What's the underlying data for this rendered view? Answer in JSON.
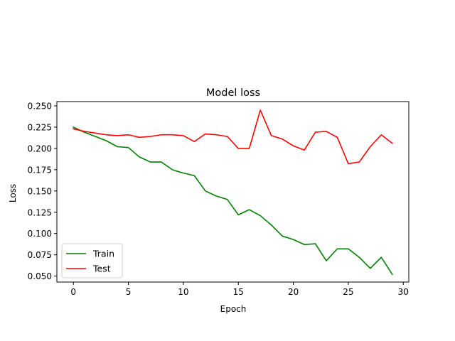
{
  "chart_data": {
    "type": "line",
    "title": "Model loss",
    "xlabel": "Epoch",
    "ylabel": "Loss",
    "xlim": [
      -1.5,
      30.5
    ],
    "ylim": [
      0.043,
      0.255
    ],
    "xticks": [
      0,
      5,
      10,
      15,
      20,
      25,
      30
    ],
    "yticks": [
      0.05,
      0.075,
      0.1,
      0.125,
      0.15,
      0.175,
      0.2,
      0.225,
      0.25
    ],
    "xtick_labels": [
      "0",
      "5",
      "10",
      "15",
      "20",
      "25",
      "30"
    ],
    "ytick_labels": [
      "0.050",
      "0.075",
      "0.100",
      "0.125",
      "0.150",
      "0.175",
      "0.200",
      "0.225",
      "0.250"
    ],
    "legend_position": "lower-left",
    "x": [
      0,
      1,
      2,
      3,
      4,
      5,
      6,
      7,
      8,
      9,
      10,
      11,
      12,
      13,
      14,
      15,
      16,
      17,
      18,
      19,
      20,
      21,
      22,
      23,
      24,
      25,
      26,
      27,
      28,
      29
    ],
    "series": [
      {
        "name": "Train",
        "color": "#008000",
        "values": [
          0.225,
          0.219,
          0.214,
          0.209,
          0.202,
          0.201,
          0.19,
          0.184,
          0.184,
          0.175,
          0.171,
          0.168,
          0.15,
          0.144,
          0.14,
          0.122,
          0.128,
          0.121,
          0.11,
          0.097,
          0.093,
          0.087,
          0.088,
          0.068,
          0.082,
          0.082,
          0.072,
          0.059,
          0.072,
          0.052
        ]
      },
      {
        "name": "Test",
        "color": "#ff0000",
        "values": [
          0.223,
          0.22,
          0.218,
          0.216,
          0.215,
          0.216,
          0.213,
          0.214,
          0.216,
          0.216,
          0.215,
          0.208,
          0.217,
          0.216,
          0.214,
          0.2,
          0.2,
          0.245,
          0.215,
          0.211,
          0.203,
          0.198,
          0.219,
          0.22,
          0.213,
          0.182,
          0.184,
          0.202,
          0.216,
          0.206
        ]
      }
    ]
  }
}
